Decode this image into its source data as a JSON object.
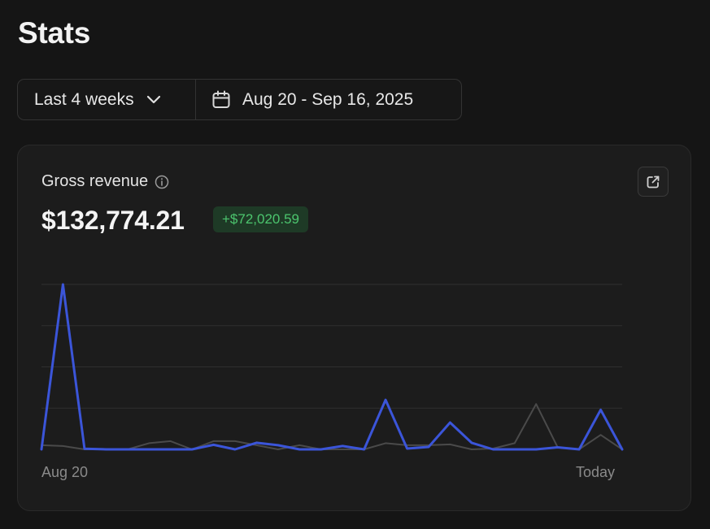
{
  "page": {
    "title": "Stats"
  },
  "filters": {
    "range_label": "Last 4 weeks",
    "date_range": "Aug 20 - Sep 16, 2025"
  },
  "card": {
    "metric_label": "Gross revenue",
    "metric_value": "$132,774.21",
    "delta": "+$72,020.59",
    "x_start_label": "Aug 20",
    "x_end_label": "Today"
  },
  "icons": {
    "chevron": "chevron-down-icon",
    "calendar": "calendar-icon",
    "info": "info-icon",
    "open": "external-link-icon"
  },
  "colors": {
    "primary_series": "#3b55d9",
    "comparison_series": "#4a4a4a",
    "delta_positive": "#4cc56e"
  },
  "chart_data": {
    "type": "line",
    "x_labels": [
      "Aug 20",
      "Today"
    ],
    "grid": true,
    "series": [
      {
        "role": "current",
        "color": "#3b55d9",
        "values": [
          0,
          40,
          0.15,
          0,
          0,
          0,
          0,
          0,
          1.1,
          0,
          1.6,
          1.0,
          0,
          0,
          0.8,
          0,
          12,
          0.2,
          0.6,
          6.5,
          1.6,
          0,
          0,
          0,
          0.5,
          0,
          9.6,
          0
        ]
      },
      {
        "role": "comparison",
        "color": "#4a4a4a",
        "values": [
          1.0,
          0.8,
          0,
          0,
          0,
          1.5,
          2.0,
          0,
          2.0,
          2.0,
          1.0,
          0,
          1.0,
          0,
          0,
          0,
          1.5,
          1.0,
          1.0,
          1.2,
          0,
          0.2,
          1.5,
          11,
          0.5,
          0,
          3.5,
          0
        ]
      }
    ]
  }
}
